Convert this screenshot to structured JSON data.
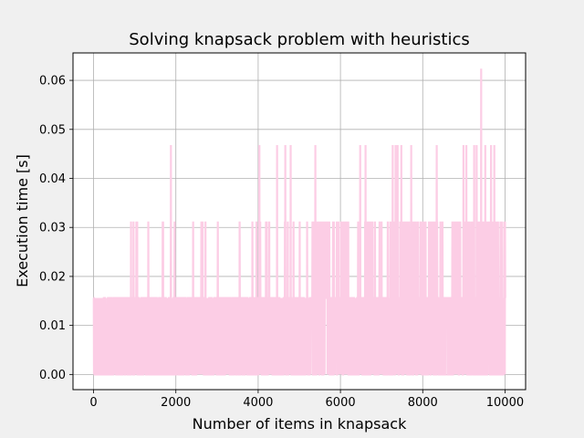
{
  "chart_data": {
    "type": "line",
    "title": "Solving knapsack problem with heuristics",
    "xlabel": "Number of items in knapsack",
    "ylabel": "Execution time [s]",
    "xlim": [
      -500,
      10500
    ],
    "ylim": [
      -0.0031,
      0.0656
    ],
    "xticks": [
      0,
      2000,
      4000,
      6000,
      8000,
      10000
    ],
    "xtick_labels": [
      "0",
      "2000",
      "4000",
      "6000",
      "8000",
      "10000"
    ],
    "yticks": [
      0.0,
      0.01,
      0.02,
      0.03,
      0.04,
      0.05,
      0.06
    ],
    "ytick_labels": [
      "0.00",
      "0.01",
      "0.02",
      "0.03",
      "0.04",
      "0.05",
      "0.06"
    ],
    "grid": true,
    "legend": "none",
    "series": [
      {
        "color": "#fccde5",
        "x_range": [
          0,
          10000
        ],
        "point_spacing": 1,
        "quantization_step": 0.0156,
        "baseline_levels": [
          0.0,
          0.0156
        ],
        "occasional_levels": [
          0.0312
        ],
        "spikes_0_047": [
          1880,
          4030,
          4460,
          4660,
          4790,
          5390,
          6480,
          6610,
          7270,
          7340,
          7390,
          7480,
          7720,
          8340,
          8990,
          9060,
          9250,
          9310,
          9520,
          9660,
          9740
        ],
        "spikes_0_0625": [
          9420
        ],
        "dense_0_0312_regions": [
          [
            5300,
            6200
          ],
          [
            6400,
            7000
          ],
          [
            7200,
            7900
          ],
          [
            8000,
            8500
          ],
          [
            8700,
            10000
          ]
        ]
      }
    ]
  }
}
